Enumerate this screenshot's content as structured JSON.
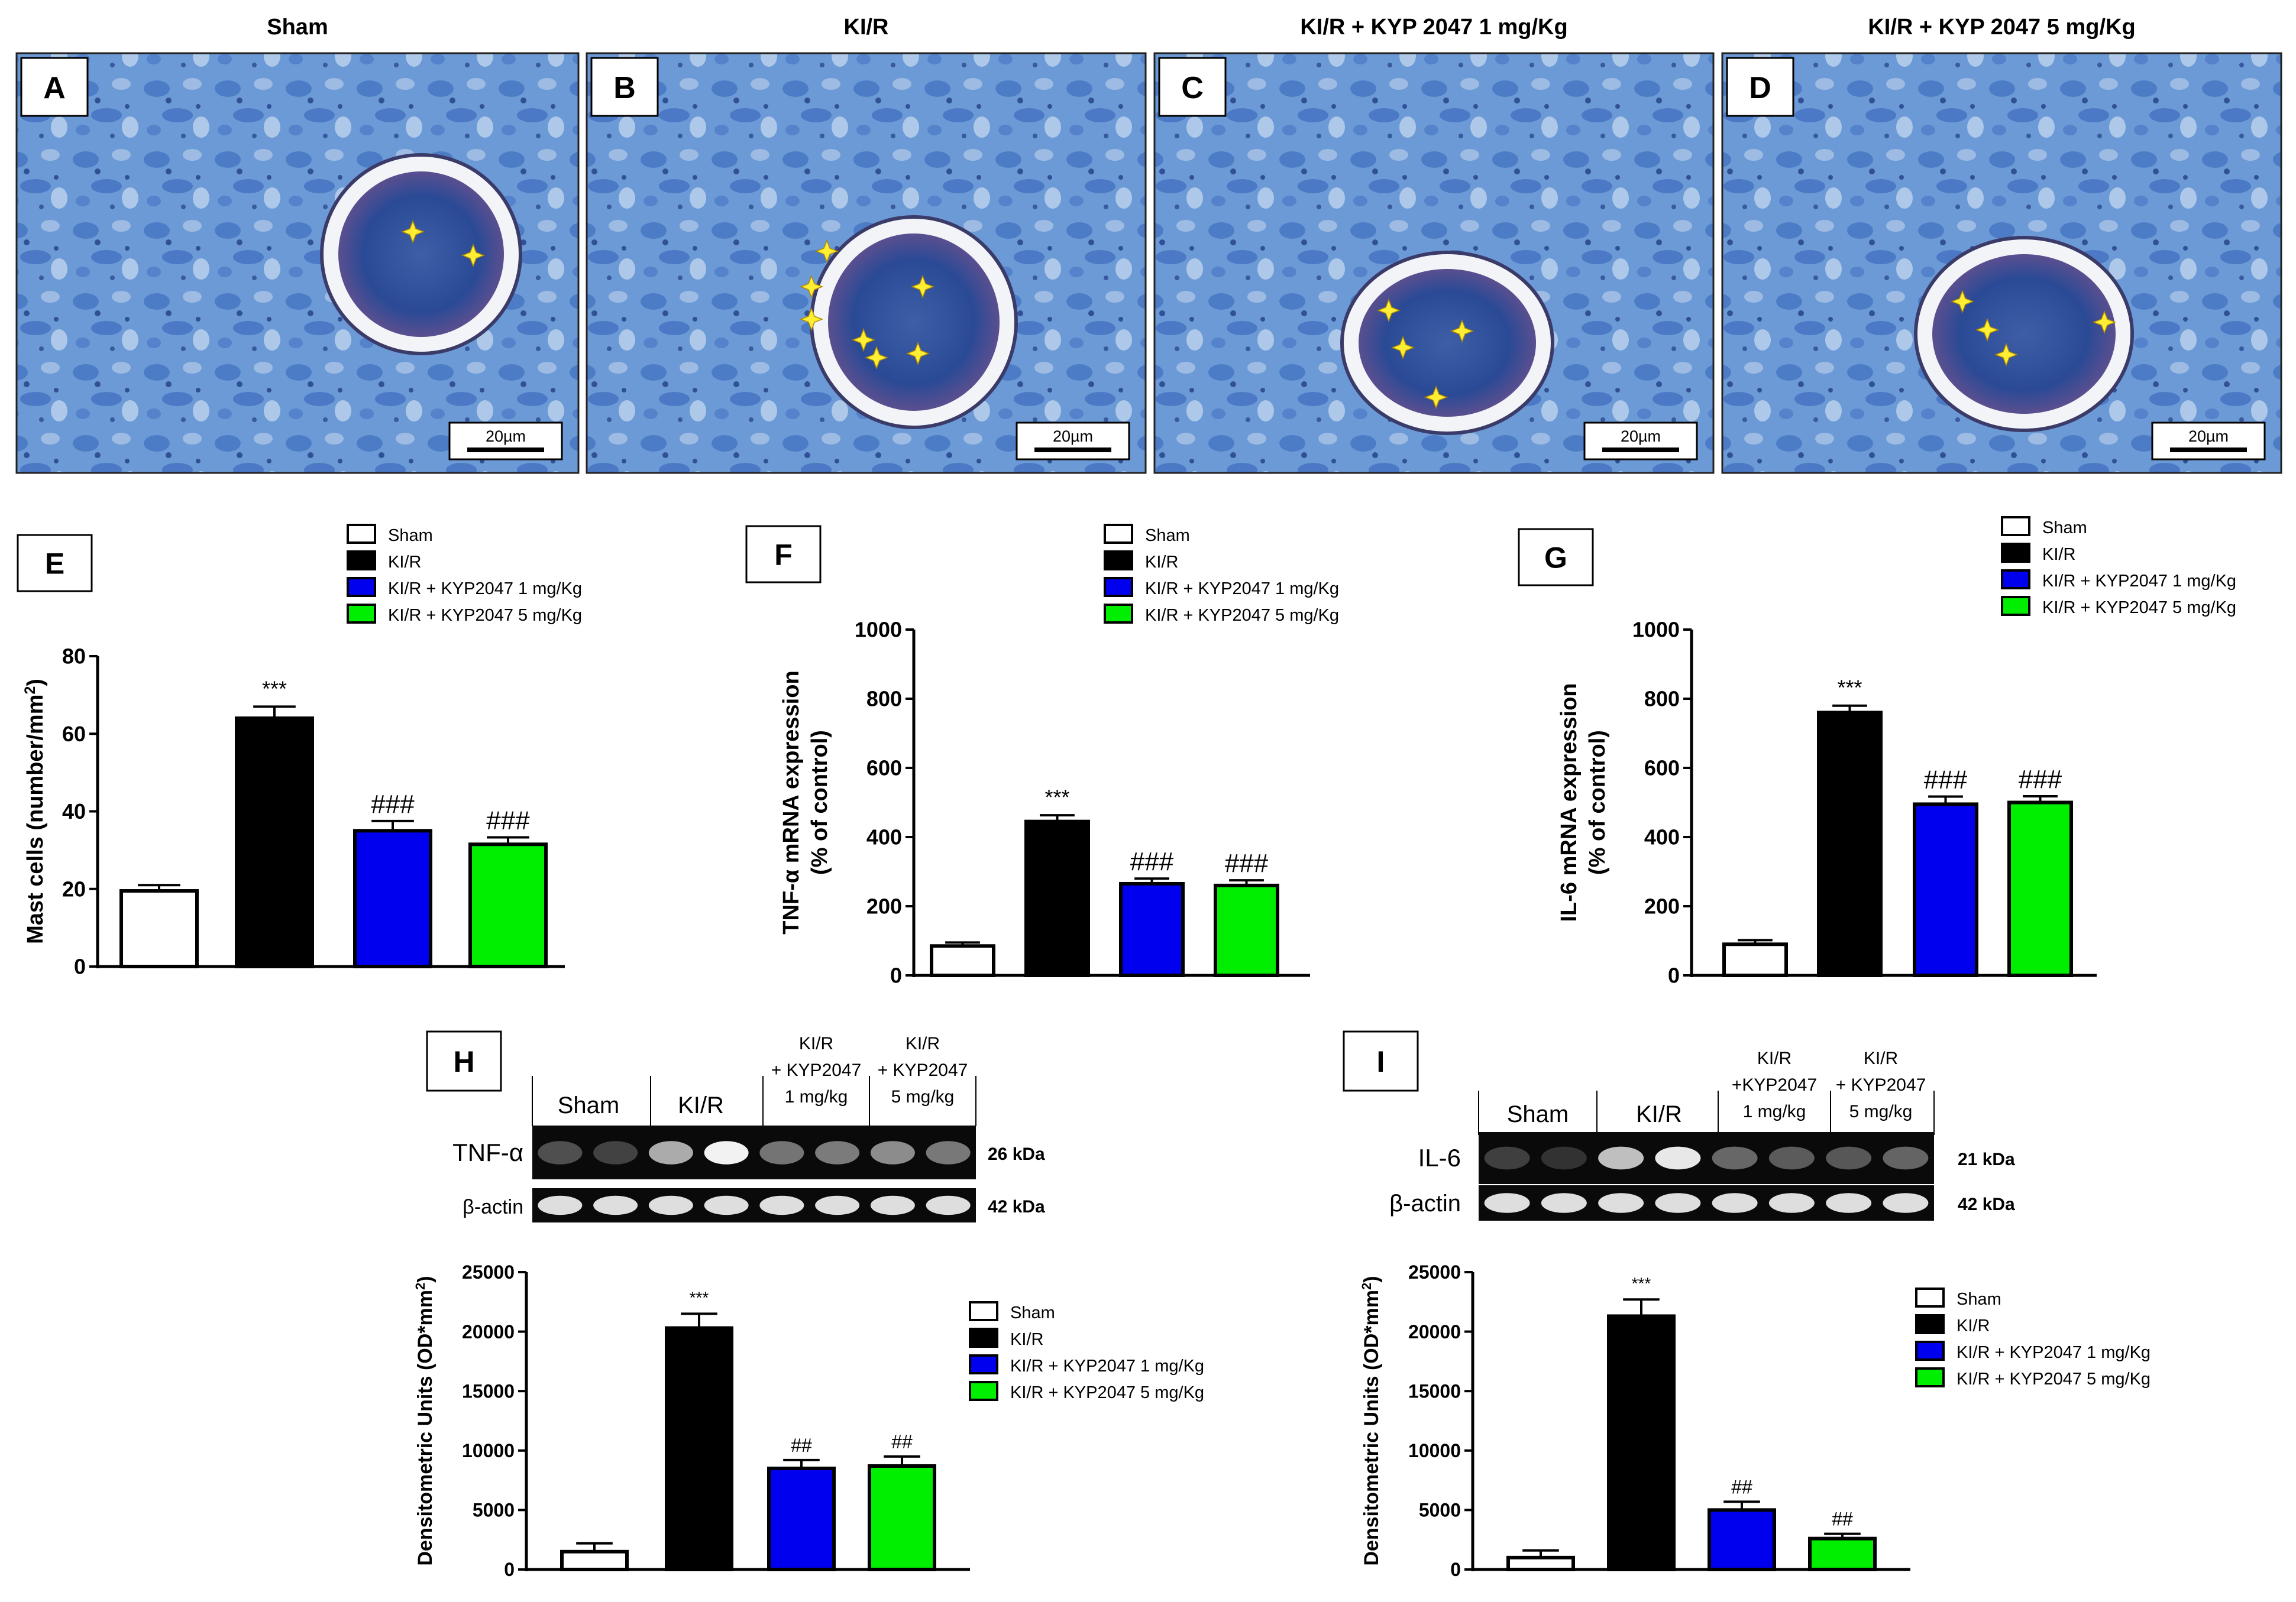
{
  "colors": {
    "sham": "#ffffff",
    "kir": "#000000",
    "kyp1": "#0000ee",
    "kyp5": "#00ee00",
    "tissue": "#5d8fcf",
    "marker": "#ffee33"
  },
  "legend_labels": [
    "Sham",
    "KI/R",
    "KI/R + KYP2047 1 mg/Kg",
    "KI/R + KYP2047 5 mg/Kg"
  ],
  "histology": {
    "scale_bar": "20µm",
    "panels": [
      {
        "letter": "A",
        "title": "Sham"
      },
      {
        "letter": "B",
        "title": "KI/R"
      },
      {
        "letter": "C",
        "title": "KI/R + KYP 2047  1 mg/Kg"
      },
      {
        "letter": "D",
        "title": "KI/R + KYP 2047  5 mg/Kg"
      }
    ]
  },
  "blots": [
    {
      "letter": "H",
      "groups": [
        {
          "lines": [
            "Sham"
          ]
        },
        {
          "lines": [
            "KI/R"
          ]
        },
        {
          "lines": [
            "KI/R",
            "+ KYP2047",
            "1 mg/kg"
          ]
        },
        {
          "lines": [
            "KI/R",
            "+ KYP2047",
            "5 mg/kg"
          ]
        }
      ],
      "rows": [
        {
          "protein": "TNF-α",
          "kda": "26 kDa",
          "intensities": [
            0.2,
            0.14,
            0.65,
            1.0,
            0.38,
            0.42,
            0.5,
            0.4
          ]
        },
        {
          "protein": "β-actin",
          "kda": "42 kDa",
          "intensities": [
            0.9,
            0.9,
            0.9,
            0.9,
            0.9,
            0.9,
            0.9,
            0.9
          ]
        }
      ]
    },
    {
      "letter": "I",
      "groups": [
        {
          "lines": [
            "Sham"
          ]
        },
        {
          "lines": [
            "KI/R"
          ]
        },
        {
          "lines": [
            "KI/R",
            "+KYP2047",
            "1 mg/kg"
          ]
        },
        {
          "lines": [
            "KI/R",
            "+ KYP2047",
            "5 mg/kg"
          ]
        }
      ],
      "rows": [
        {
          "protein": "IL-6",
          "kda": "21 kDa",
          "intensities": [
            0.12,
            0.06,
            0.75,
            0.95,
            0.32,
            0.26,
            0.24,
            0.3
          ]
        },
        {
          "protein": "β-actin",
          "kda": "42 kDa",
          "intensities": [
            0.9,
            0.9,
            0.9,
            0.9,
            0.9,
            0.9,
            0.9,
            0.9
          ]
        }
      ]
    }
  ],
  "chart_data": [
    {
      "panel": "E",
      "type": "bar",
      "categories": [
        "Sham",
        "KI/R",
        "KI/R + KYP2047 1 mg/Kg",
        "KI/R + KYP2047 5 mg/Kg"
      ],
      "values": [
        19.5,
        64,
        35,
        31.5
      ],
      "errors": [
        1.5,
        3,
        2.5,
        1.8
      ],
      "significance": [
        "",
        "***",
        "###",
        "###"
      ],
      "ylabel": "Mast cells (number/mm",
      "ylabel_sup": "2",
      "ylabel_end": ")",
      "ylim": [
        0,
        80
      ],
      "yticks": [
        "0",
        "20",
        "40",
        "60",
        "80"
      ],
      "legend": "above"
    },
    {
      "panel": "F",
      "type": "bar",
      "categories": [
        "Sham",
        "KI/R",
        "KI/R + KYP2047 1 mg/Kg",
        "KI/R + KYP2047 5 mg/Kg"
      ],
      "values": [
        85,
        445,
        265,
        260
      ],
      "errors": [
        10,
        18,
        15,
        15
      ],
      "significance": [
        "",
        "***",
        "###",
        "###"
      ],
      "ylabel_lines": [
        "TNF-α mRNA expression",
        "(% of control)"
      ],
      "ylim": [
        0,
        1000
      ],
      "yticks": [
        "0",
        "200",
        "400",
        "600",
        "800",
        "1000"
      ],
      "legend": "above"
    },
    {
      "panel": "G",
      "type": "bar",
      "categories": [
        "Sham",
        "KI/R",
        "KI/R + KYP2047 1 mg/Kg",
        "KI/R + KYP2047 5 mg/Kg"
      ],
      "values": [
        90,
        760,
        495,
        500
      ],
      "errors": [
        12,
        20,
        22,
        18
      ],
      "significance": [
        "",
        "***",
        "###",
        "###"
      ],
      "ylabel_lines": [
        "IL-6 mRNA expression",
        "(% of control)"
      ],
      "ylim": [
        0,
        1000
      ],
      "yticks": [
        "0",
        "200",
        "400",
        "600",
        "800",
        "1000"
      ],
      "legend": "above"
    },
    {
      "panel": "H",
      "type": "bar",
      "categories": [
        "Sham",
        "KI/R",
        "KI/R + KYP2047 1 mg/Kg",
        "KI/R + KYP2047 5 mg/Kg"
      ],
      "values": [
        1500,
        20300,
        8500,
        8700
      ],
      "errors": [
        700,
        1200,
        700,
        800
      ],
      "significance": [
        "",
        "***",
        "##",
        "##"
      ],
      "ylabel": "Densitometric Units (OD*mm",
      "ylabel_sup": "2",
      "ylabel_end": ")",
      "ylim": [
        0,
        25000
      ],
      "yticks": [
        "0",
        "5000",
        "10000",
        "15000",
        "20000",
        "25000"
      ],
      "legend": "right"
    },
    {
      "panel": "I",
      "type": "bar",
      "categories": [
        "Sham",
        "KI/R",
        "KI/R + KYP2047 1 mg/Kg",
        "KI/R + KYP2047 5 mg/Kg"
      ],
      "values": [
        1000,
        21300,
        5000,
        2600
      ],
      "errors": [
        600,
        1400,
        700,
        400
      ],
      "significance": [
        "",
        "***",
        "##",
        "##"
      ],
      "ylabel": "Densitometric Units (OD*mm",
      "ylabel_sup": "2",
      "ylabel_end": ")",
      "ylim": [
        0,
        25000
      ],
      "yticks": [
        "0",
        "5000",
        "10000",
        "15000",
        "20000",
        "25000"
      ],
      "legend": "right"
    }
  ]
}
